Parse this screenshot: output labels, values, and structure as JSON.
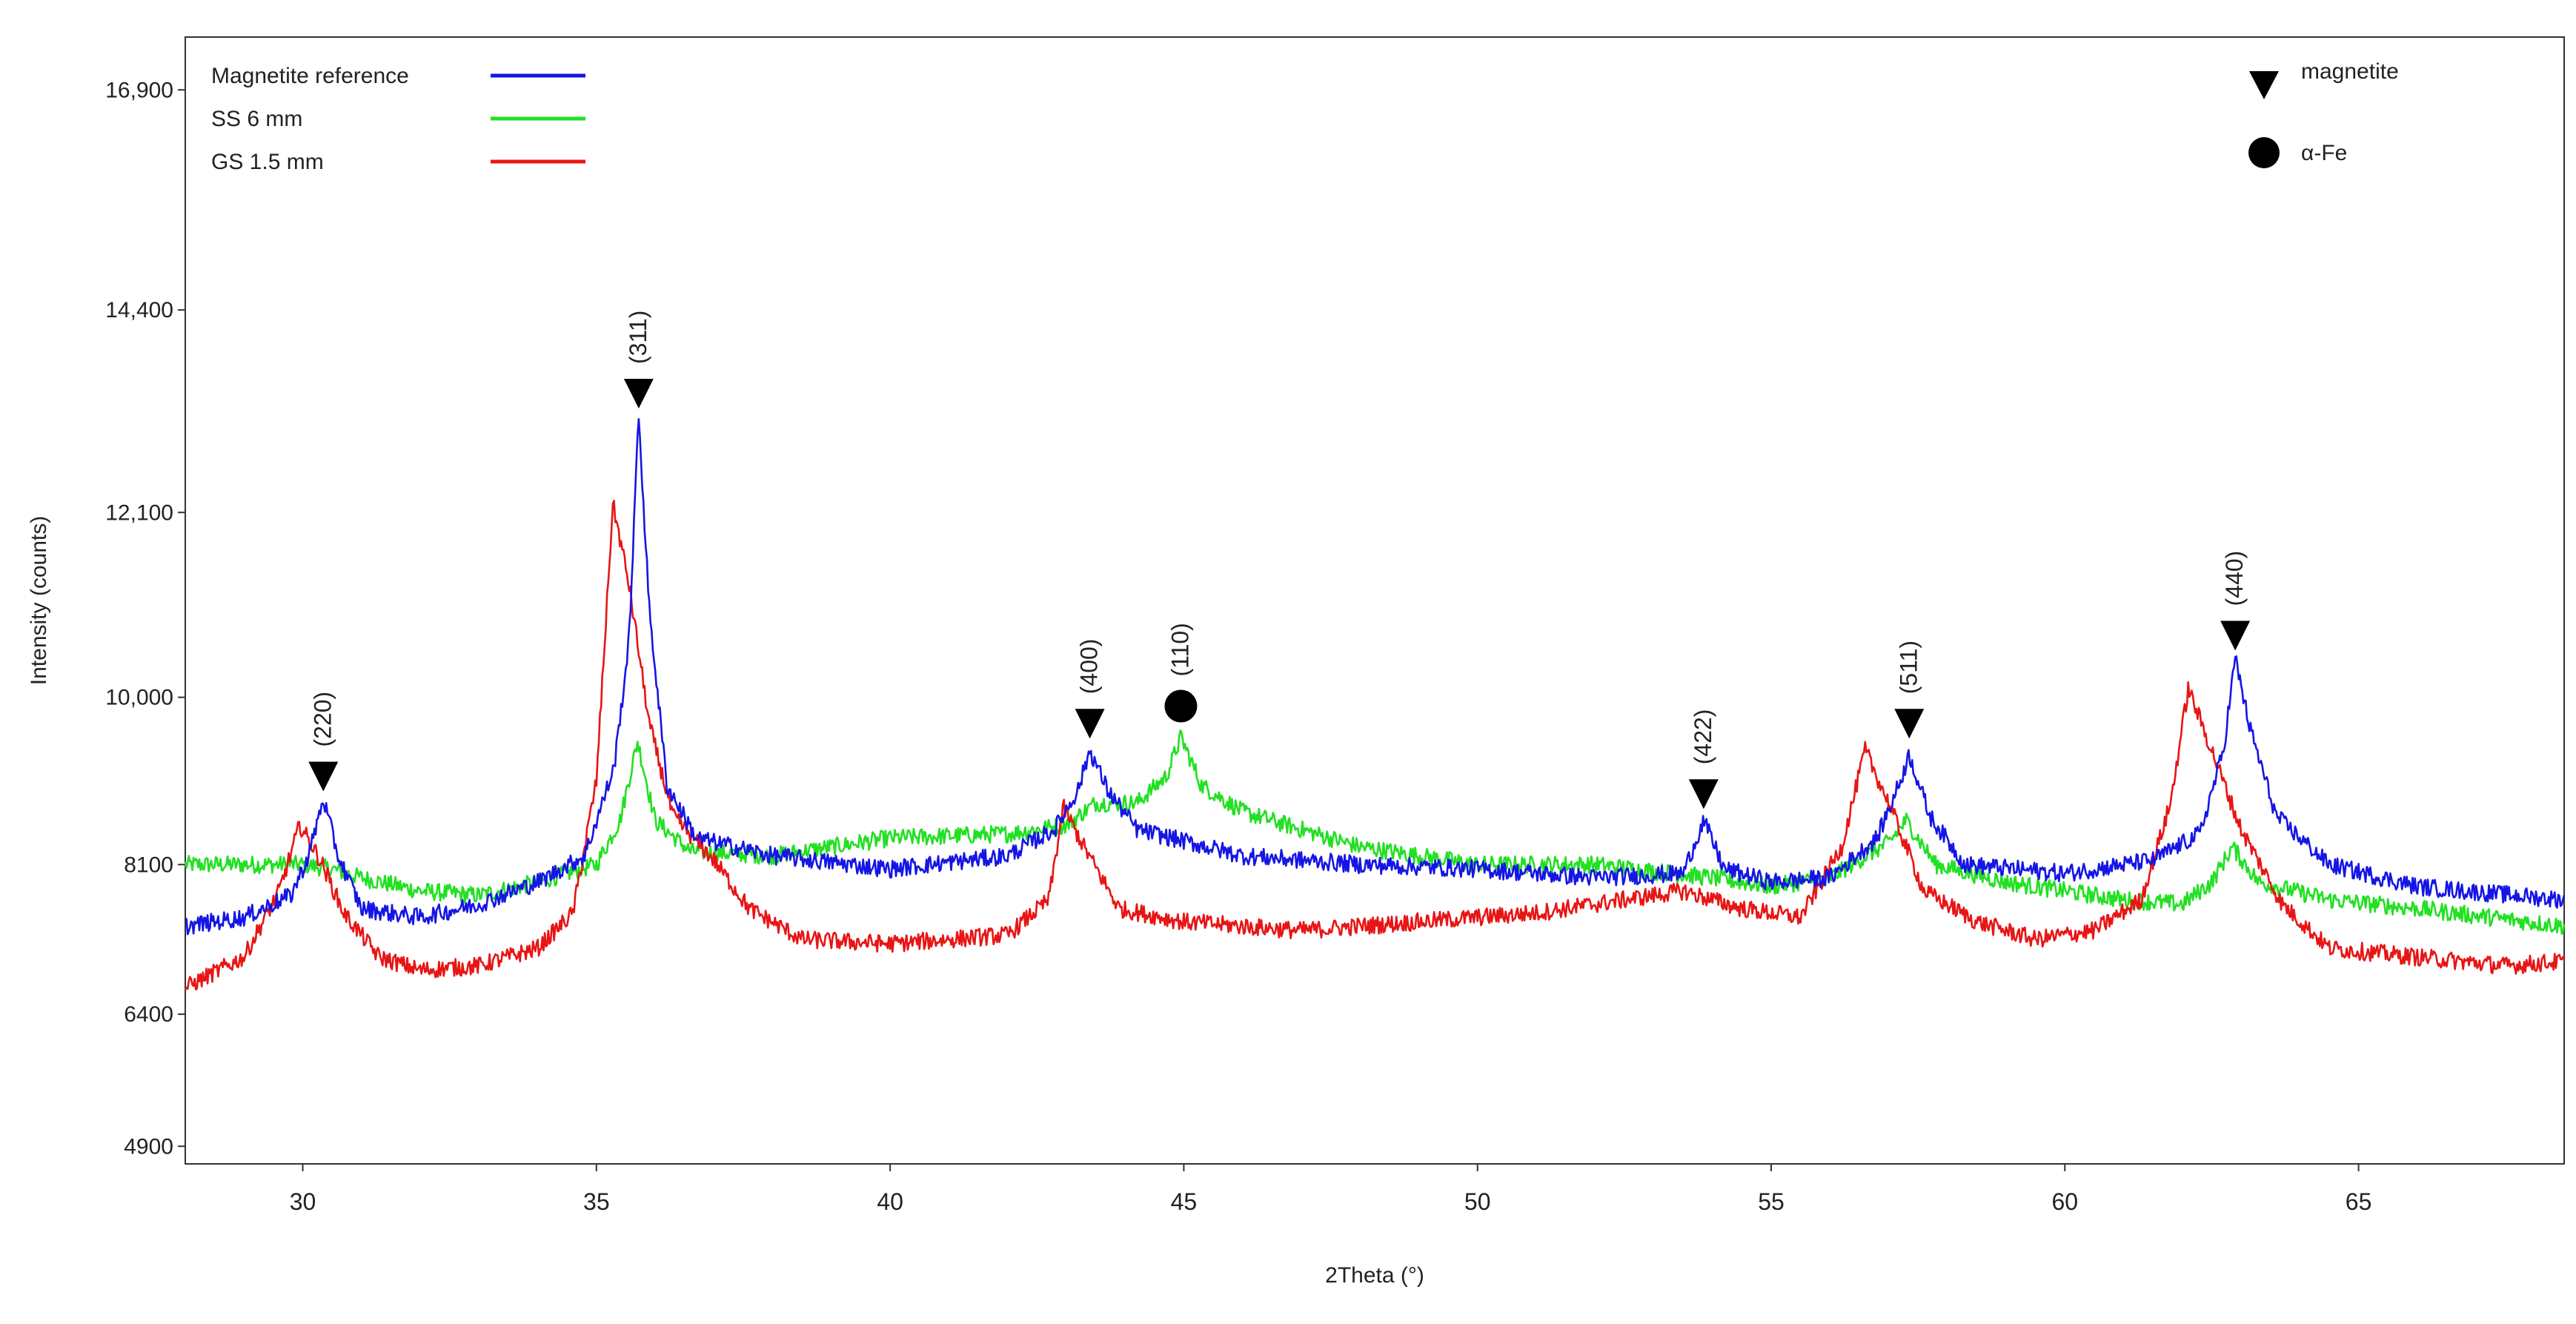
{
  "chart_data": {
    "type": "line",
    "title": "",
    "xlabel": "2Theta (°)",
    "ylabel": "Intensity (counts)",
    "xlim": [
      28,
      68.5
    ],
    "ylim": [
      4700,
      17500
    ],
    "x_ticks": [
      30,
      35,
      40,
      45,
      50,
      55,
      60,
      65
    ],
    "y_ticks": [
      {
        "value": 4900,
        "label": "4900"
      },
      {
        "value": 6400,
        "label": "6400"
      },
      {
        "value": 8100,
        "label": "8100"
      },
      {
        "value": 10000,
        "label": "10,000"
      },
      {
        "value": 12100,
        "label": "12,100"
      },
      {
        "value": 14400,
        "label": "14,400"
      },
      {
        "value": 16900,
        "label": "16,900"
      }
    ],
    "grid": false,
    "legend_position": "top-left",
    "series": [
      {
        "name": "Magnetite reference",
        "color": "#1515e6",
        "points": [
          [
            28,
            7400
          ],
          [
            29,
            7500
          ],
          [
            29.8,
            7750
          ],
          [
            30.1,
            8200
          ],
          [
            30.35,
            8850
          ],
          [
            30.6,
            8200
          ],
          [
            31,
            7600
          ],
          [
            32,
            7500
          ],
          [
            33,
            7650
          ],
          [
            34,
            7900
          ],
          [
            34.8,
            8200
          ],
          [
            35.3,
            9200
          ],
          [
            35.55,
            10600
          ],
          [
            35.72,
            13200
          ],
          [
            35.9,
            11000
          ],
          [
            36.2,
            9000
          ],
          [
            36.7,
            8400
          ],
          [
            38,
            8200
          ],
          [
            40,
            8050
          ],
          [
            42,
            8200
          ],
          [
            42.8,
            8500
          ],
          [
            43.2,
            8950
          ],
          [
            43.4,
            9400
          ],
          [
            43.7,
            8950
          ],
          [
            44.2,
            8500
          ],
          [
            46,
            8200
          ],
          [
            48,
            8100
          ],
          [
            50,
            8050
          ],
          [
            52,
            7950
          ],
          [
            53.5,
            8000
          ],
          [
            53.85,
            8600
          ],
          [
            54.2,
            8050
          ],
          [
            55,
            7900
          ],
          [
            56,
            7950
          ],
          [
            56.8,
            8400
          ],
          [
            57.2,
            9050
          ],
          [
            57.35,
            9350
          ],
          [
            57.7,
            8650
          ],
          [
            58.3,
            8100
          ],
          [
            60,
            8000
          ],
          [
            61.5,
            8150
          ],
          [
            62.3,
            8450
          ],
          [
            62.7,
            9400
          ],
          [
            62.9,
            10450
          ],
          [
            63.15,
            9650
          ],
          [
            63.6,
            8650
          ],
          [
            64.5,
            8100
          ],
          [
            66,
            7850
          ],
          [
            68.5,
            7700
          ]
        ]
      },
      {
        "name": "SS 6 mm",
        "color": "#22e022",
        "points": [
          [
            28,
            8100
          ],
          [
            29,
            8100
          ],
          [
            30,
            8100
          ],
          [
            30.5,
            8050
          ],
          [
            31,
            7950
          ],
          [
            32,
            7800
          ],
          [
            33,
            7750
          ],
          [
            34,
            7900
          ],
          [
            35,
            8100
          ],
          [
            35.4,
            8600
          ],
          [
            35.7,
            9500
          ],
          [
            36,
            8600
          ],
          [
            36.6,
            8250
          ],
          [
            38,
            8200
          ],
          [
            40,
            8400
          ],
          [
            42,
            8450
          ],
          [
            43,
            8550
          ],
          [
            43.5,
            8800
          ],
          [
            44.2,
            8800
          ],
          [
            44.7,
            9100
          ],
          [
            44.95,
            9550
          ],
          [
            45.3,
            9000
          ],
          [
            46,
            8700
          ],
          [
            48,
            8300
          ],
          [
            50,
            8100
          ],
          [
            52,
            8100
          ],
          [
            54,
            7950
          ],
          [
            55,
            7850
          ],
          [
            56,
            7950
          ],
          [
            57,
            8350
          ],
          [
            57.3,
            8600
          ],
          [
            57.8,
            8100
          ],
          [
            59,
            7900
          ],
          [
            61,
            7700
          ],
          [
            62,
            7650
          ],
          [
            62.5,
            7900
          ],
          [
            62.85,
            8300
          ],
          [
            63.3,
            7900
          ],
          [
            64.5,
            7700
          ],
          [
            66,
            7600
          ],
          [
            68.5,
            7400
          ]
        ]
      },
      {
        "name": "GS 1.5 mm",
        "color": "#e81515",
        "points": [
          [
            28,
            6700
          ],
          [
            29,
            7050
          ],
          [
            29.6,
            7800
          ],
          [
            29.95,
            8550
          ],
          [
            30.3,
            8150
          ],
          [
            30.7,
            7550
          ],
          [
            31.3,
            7050
          ],
          [
            32,
            6900
          ],
          [
            33,
            6950
          ],
          [
            34,
            7150
          ],
          [
            34.6,
            7550
          ],
          [
            35,
            9050
          ],
          [
            35.28,
            12200
          ],
          [
            35.55,
            11300
          ],
          [
            35.9,
            9700
          ],
          [
            36.3,
            8650
          ],
          [
            37,
            8150
          ],
          [
            37.6,
            7600
          ],
          [
            38.5,
            7250
          ],
          [
            40,
            7200
          ],
          [
            42,
            7300
          ],
          [
            42.7,
            7700
          ],
          [
            42.95,
            8750
          ],
          [
            43.3,
            8300
          ],
          [
            43.9,
            7600
          ],
          [
            45,
            7450
          ],
          [
            47,
            7350
          ],
          [
            49,
            7450
          ],
          [
            51,
            7550
          ],
          [
            52.5,
            7700
          ],
          [
            53.5,
            7800
          ],
          [
            54.5,
            7600
          ],
          [
            55.5,
            7500
          ],
          [
            56.2,
            8300
          ],
          [
            56.6,
            9400
          ],
          [
            57,
            8800
          ],
          [
            57.6,
            7800
          ],
          [
            58.5,
            7450
          ],
          [
            59.5,
            7250
          ],
          [
            60.5,
            7350
          ],
          [
            61.3,
            7700
          ],
          [
            61.8,
            8800
          ],
          [
            62.1,
            10100
          ],
          [
            62.5,
            9400
          ],
          [
            63,
            8500
          ],
          [
            63.7,
            7650
          ],
          [
            64.5,
            7150
          ],
          [
            66,
            7050
          ],
          [
            67.5,
            6950
          ],
          [
            68.5,
            7000
          ]
        ]
      }
    ],
    "legend_markers": [
      {
        "symbol": "triangle-down",
        "label": "magnetite"
      },
      {
        "symbol": "circle",
        "label": "α-Fe"
      }
    ],
    "peak_annotations": [
      {
        "label": "(220)",
        "x": 30.35,
        "y": 9100,
        "symbol": "triangle-down"
      },
      {
        "label": "(311)",
        "x": 35.72,
        "y": 13450,
        "symbol": "triangle-down"
      },
      {
        "label": "(400)",
        "x": 43.4,
        "y": 9700,
        "symbol": "triangle-down"
      },
      {
        "label": "(110)",
        "x": 44.95,
        "y": 9900,
        "symbol": "circle"
      },
      {
        "label": "(422)",
        "x": 53.85,
        "y": 8900,
        "symbol": "triangle-down"
      },
      {
        "label": "(511)",
        "x": 57.35,
        "y": 9700,
        "symbol": "triangle-down"
      },
      {
        "label": "(440)",
        "x": 62.9,
        "y": 10700,
        "symbol": "triangle-down"
      }
    ]
  }
}
